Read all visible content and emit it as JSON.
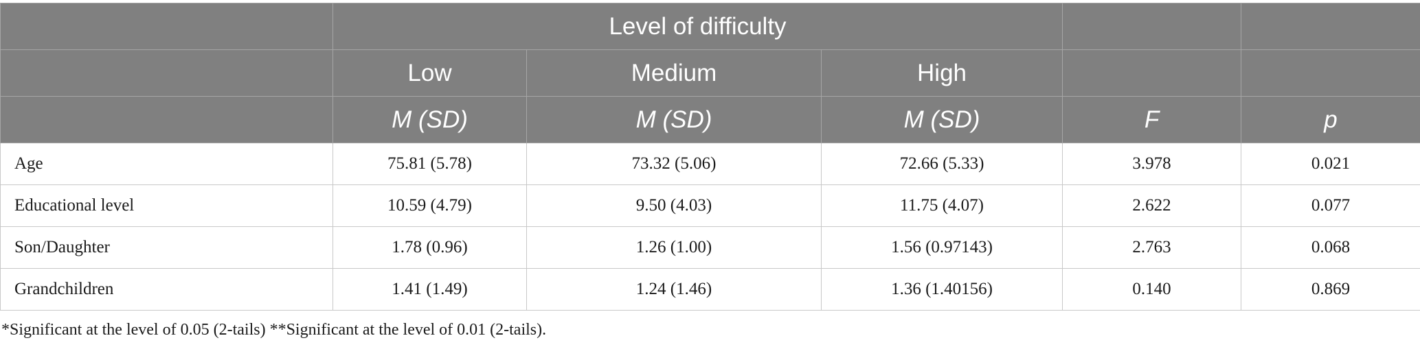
{
  "header": {
    "group_title": "Level of difficulty",
    "levels": [
      "Low",
      "Medium",
      "High"
    ],
    "stats": {
      "low": "M (SD)",
      "medium": "M (SD)",
      "high": "M (SD)",
      "f": "F",
      "p": "p"
    }
  },
  "rows": [
    {
      "label": "Age",
      "low": "75.81 (5.78)",
      "medium": "73.32 (5.06)",
      "high": "72.66 (5.33)",
      "f": "3.978",
      "p": "0.021"
    },
    {
      "label": "Educational level",
      "low": "10.59 (4.79)",
      "medium": "9.50 (4.03)",
      "high": "11.75 (4.07)",
      "f": "2.622",
      "p": "0.077"
    },
    {
      "label": "Son/Daughter",
      "low": "1.78 (0.96)",
      "medium": "1.26 (1.00)",
      "high": "1.56 (0.97143)",
      "f": "2.763",
      "p": "0.068"
    },
    {
      "label": "Grandchildren",
      "low": "1.41 (1.49)",
      "medium": "1.24 (1.46)",
      "high": "1.36 (1.40156)",
      "f": "0.140",
      "p": "0.869"
    }
  ],
  "footnote": "*Significant at the level of 0.05 (2-tails) **Significant at the level of 0.01 (2-tails)."
}
